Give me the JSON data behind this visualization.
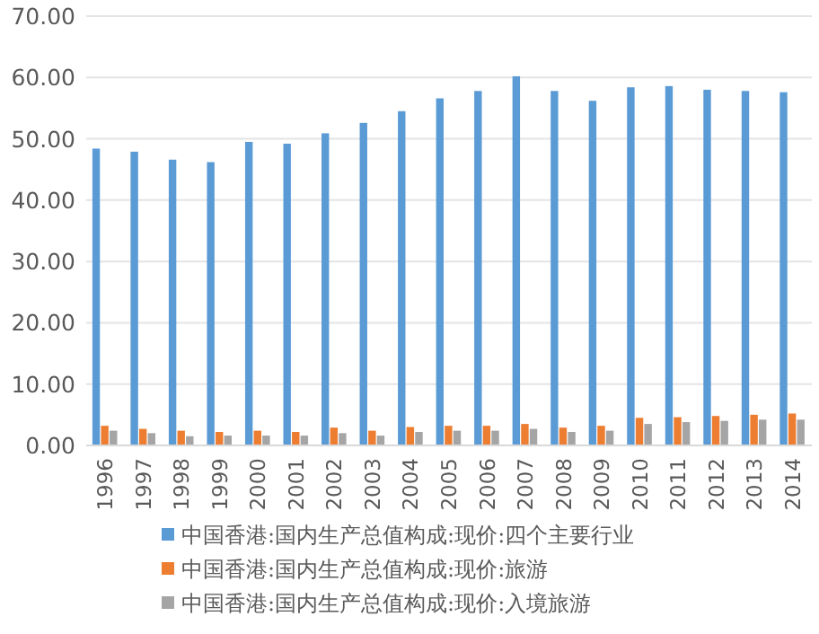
{
  "chart_data": {
    "type": "bar",
    "categories": [
      "1996",
      "1997",
      "1998",
      "1999",
      "2000",
      "2001",
      "2002",
      "2003",
      "2004",
      "2005",
      "2006",
      "2007",
      "2008",
      "2009",
      "2010",
      "2011",
      "2012",
      "2013",
      "2014"
    ],
    "series": [
      {
        "name": "中国香港:国内生产总值构成:现价:四个主要行业",
        "color": "#5b9bd5",
        "values": [
          48.4,
          47.9,
          46.6,
          46.2,
          49.5,
          49.2,
          50.9,
          52.6,
          54.5,
          56.6,
          57.8,
          60.2,
          57.8,
          56.2,
          58.4,
          58.6,
          58.0,
          57.8,
          57.6
        ]
      },
      {
        "name": "中国香港:国内生产总值构成:现价:旅游",
        "color": "#ed7d31",
        "values": [
          3.2,
          2.7,
          2.4,
          2.2,
          2.4,
          2.2,
          2.9,
          2.4,
          3.0,
          3.2,
          3.2,
          3.5,
          2.9,
          3.2,
          4.5,
          4.6,
          4.8,
          5.0,
          5.2
        ]
      },
      {
        "name": "中国香港:国内生产总值构成:现价:入境旅游",
        "color": "#a5a5a5",
        "values": [
          2.4,
          2.0,
          1.5,
          1.6,
          1.6,
          1.6,
          2.0,
          1.6,
          2.2,
          2.4,
          2.4,
          2.7,
          2.2,
          2.4,
          3.5,
          3.8,
          4.0,
          4.2,
          4.2
        ]
      }
    ],
    "ylim": [
      0,
      70
    ],
    "yticks": [
      {
        "value": 0,
        "label": "0.00"
      },
      {
        "value": 10,
        "label": "10.00"
      },
      {
        "value": 20,
        "label": "20.00"
      },
      {
        "value": 30,
        "label": "30.00"
      },
      {
        "value": 40,
        "label": "40.00"
      },
      {
        "value": 50,
        "label": "50.00"
      },
      {
        "value": 60,
        "label": "60.00"
      },
      {
        "value": 70,
        "label": "70.00"
      }
    ],
    "grid": "y",
    "legend": "bottom"
  }
}
